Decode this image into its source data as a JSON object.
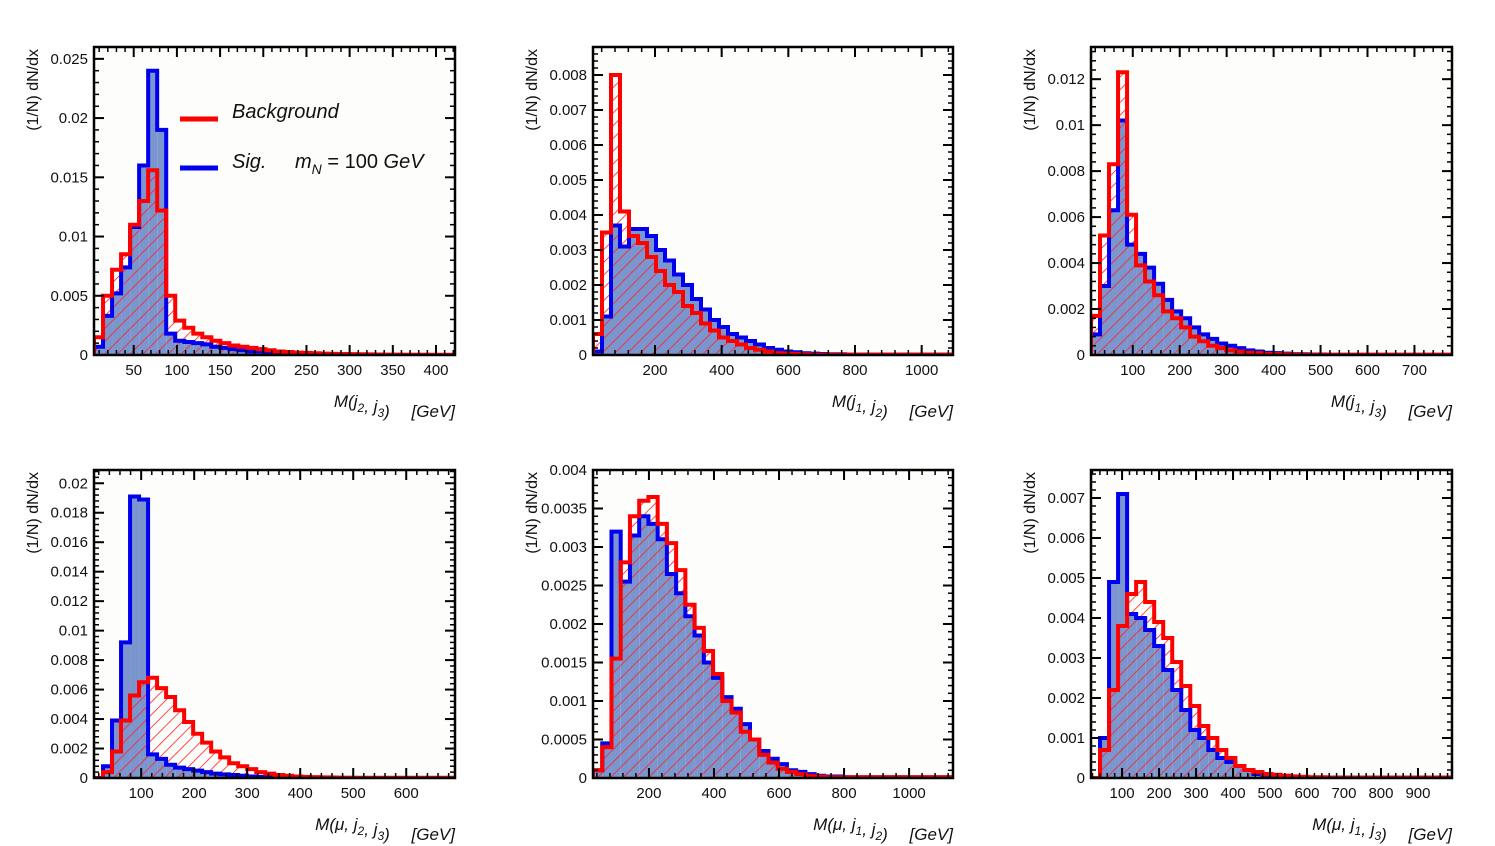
{
  "figure": {
    "ylabel": "(1/N) dN/dx",
    "legend": {
      "background_label": "Background",
      "signal_label": "Sig.",
      "signal_mass_label": "m_N = 100 GeV",
      "placement": "top-right of first panel"
    }
  },
  "colors": {
    "background_line": "#ff0000",
    "background_hatch": "#ff2020",
    "signal_line": "#0000ee",
    "signal_fill": "#7b96cf",
    "frame": "#000000",
    "panel_bg": "#fdfdfb"
  },
  "chart_data": [
    {
      "type": "bar",
      "title": "",
      "xlabel": "M(j2, j3) [GeV]",
      "xlabel_parts": {
        "var": "M(",
        "a": "j",
        "a_sub": "2",
        "sep": ", ",
        "b": "j",
        "b_sub": "3",
        "close": ")",
        "unit": "[GeV]"
      },
      "ylabel": "(1/N) dN/dx",
      "xlim": [
        4,
        422
      ],
      "ylim": [
        0,
        0.026
      ],
      "bin_start": 4,
      "bin_width": 10.45,
      "xticks": [
        50,
        100,
        150,
        200,
        250,
        300,
        350,
        400
      ],
      "xtick_labels": [
        "50",
        "100",
        "150",
        "200",
        "250",
        "300",
        "350",
        "400"
      ],
      "yticks": [
        0,
        0.005,
        0.01,
        0.015,
        0.02,
        0.025
      ],
      "ytick_labels": [
        "0",
        "0.005",
        "0.01",
        "0.015",
        "0.02",
        "0.025"
      ],
      "legend": true,
      "series": [
        {
          "name": "Sig. m_N = 100 GeV",
          "style": "filled",
          "values": [
            0.0007,
            0.0033,
            0.0052,
            0.0074,
            0.0108,
            0.016,
            0.024,
            0.019,
            0.0018,
            0.0012,
            0.0011,
            0.001,
            0.0009,
            0.0007,
            0.0006,
            0.0005,
            0.0004,
            0.0003,
            0.0003,
            0.0002,
            0.0002,
            0.00015,
            0.0001,
            0.0001,
            8e-05,
            6e-05,
            5e-05,
            4e-05,
            3e-05,
            3e-05,
            2e-05,
            2e-05,
            1e-05,
            1e-05,
            1e-05,
            1e-05,
            1e-05,
            1e-05,
            1e-05,
            1e-05
          ]
        },
        {
          "name": "Background",
          "style": "hatched",
          "values": [
            0.0015,
            0.005,
            0.0072,
            0.0085,
            0.011,
            0.013,
            0.0156,
            0.0122,
            0.005,
            0.0029,
            0.0023,
            0.0018,
            0.0015,
            0.0012,
            0.001,
            0.0008,
            0.0007,
            0.0006,
            0.0005,
            0.0004,
            0.0003,
            0.00025,
            0.0002,
            0.00018,
            0.00015,
            0.00012,
            0.0001,
            8e-05,
            7e-05,
            6e-05,
            5e-05,
            4e-05,
            3e-05,
            3e-05,
            2e-05,
            2e-05,
            2e-05,
            1e-05,
            1e-05,
            1e-05
          ]
        }
      ]
    },
    {
      "type": "bar",
      "title": "",
      "xlabel": "M(j1, j2) [GeV]",
      "xlabel_parts": {
        "var": "M(",
        "a": "j",
        "a_sub": "1",
        "sep": ", ",
        "b": "j",
        "b_sub": "2",
        "close": ")",
        "unit": "[GeV]"
      },
      "ylabel": "(1/N) dN/dx",
      "xlim": [
        14,
        1094
      ],
      "ylim": [
        0,
        0.0088
      ],
      "bin_start": 14,
      "bin_width": 27,
      "xticks": [
        200,
        400,
        600,
        800,
        1000
      ],
      "xtick_labels": [
        "200",
        "400",
        "600",
        "800",
        "1000"
      ],
      "yticks": [
        0,
        0.001,
        0.002,
        0.003,
        0.004,
        0.005,
        0.006,
        0.007,
        0.008
      ],
      "ytick_labels": [
        "0",
        "0.001",
        "0.002",
        "0.003",
        "0.004",
        "0.005",
        "0.006",
        "0.007",
        "0.008"
      ],
      "legend": false,
      "series": [
        {
          "name": "Sig. m_N = 100 GeV",
          "style": "filled",
          "values": [
            0.0001,
            0.0011,
            0.0037,
            0.0031,
            0.0036,
            0.0036,
            0.0034,
            0.003,
            0.0027,
            0.0023,
            0.002,
            0.0016,
            0.0013,
            0.001,
            0.0008,
            0.0006,
            0.0005,
            0.0004,
            0.0003,
            0.0002,
            0.00015,
            0.0001,
            8e-05,
            5e-05,
            4e-05,
            3e-05,
            2e-05,
            2e-05,
            1e-05,
            1e-05,
            1e-05,
            1e-05,
            1e-05,
            1e-05,
            1e-05,
            1e-05,
            1e-05,
            1e-05,
            1e-05,
            1e-05
          ]
        },
        {
          "name": "Background",
          "style": "hatched",
          "values": [
            0.0006,
            0.0035,
            0.008,
            0.0041,
            0.0034,
            0.0032,
            0.0028,
            0.0024,
            0.002,
            0.0018,
            0.0014,
            0.0012,
            0.0009,
            0.0007,
            0.0005,
            0.0004,
            0.0003,
            0.0002,
            0.00015,
            0.0001,
            5e-05,
            4e-05,
            3e-05,
            2e-05,
            1e-05,
            1e-05,
            1e-05,
            1e-05,
            1e-05,
            1e-05,
            1e-05,
            1e-05,
            1e-05,
            1e-05,
            1e-05,
            1e-05,
            1e-05,
            1e-05,
            1e-05,
            1e-05
          ]
        }
      ]
    },
    {
      "type": "bar",
      "title": "",
      "xlabel": "M(j1, j3) [GeV]",
      "xlabel_parts": {
        "var": "M(",
        "a": "j",
        "a_sub": "1",
        "sep": ", ",
        "b": "j",
        "b_sub": "3",
        "close": ")",
        "unit": "[GeV]"
      },
      "ylabel": "(1/N) dN/dx",
      "xlim": [
        11,
        780
      ],
      "ylim": [
        0,
        0.0134
      ],
      "bin_start": 11,
      "bin_width": 19.2,
      "xticks": [
        100,
        200,
        300,
        400,
        500,
        600,
        700
      ],
      "xtick_labels": [
        "100",
        "200",
        "300",
        "400",
        "500",
        "600",
        "700"
      ],
      "yticks": [
        0,
        0.002,
        0.004,
        0.006,
        0.008,
        0.01,
        0.012
      ],
      "ytick_labels": [
        "0",
        "0.002",
        "0.004",
        "0.006",
        "0.008",
        "0.01",
        "0.012"
      ],
      "legend": false,
      "series": [
        {
          "name": "Sig. m_N = 100 GeV",
          "style": "filled",
          "values": [
            0.0009,
            0.003,
            0.0063,
            0.0102,
            0.0048,
            0.0044,
            0.0038,
            0.0031,
            0.0024,
            0.0019,
            0.0016,
            0.0012,
            0.0009,
            0.0007,
            0.0005,
            0.0004,
            0.0003,
            0.0002,
            0.00015,
            0.0001,
            8e-05,
            6e-05,
            4e-05,
            3e-05,
            2e-05,
            2e-05,
            1e-05,
            1e-05,
            1e-05,
            1e-05,
            1e-05,
            1e-05,
            1e-05,
            1e-05,
            1e-05,
            1e-05,
            1e-05,
            1e-05,
            1e-05,
            1e-05
          ]
        },
        {
          "name": "Background",
          "style": "hatched",
          "values": [
            0.0017,
            0.0052,
            0.0083,
            0.0123,
            0.0061,
            0.0039,
            0.0032,
            0.0026,
            0.0019,
            0.0016,
            0.0012,
            0.0008,
            0.0006,
            0.0004,
            0.0003,
            0.0002,
            0.00015,
            0.0001,
            8e-05,
            5e-05,
            4e-05,
            3e-05,
            2e-05,
            1e-05,
            1e-05,
            1e-05,
            1e-05,
            1e-05,
            1e-05,
            1e-05,
            1e-05,
            1e-05,
            1e-05,
            1e-05,
            1e-05,
            1e-05,
            1e-05,
            1e-05,
            1e-05,
            1e-05
          ]
        }
      ]
    },
    {
      "type": "bar",
      "title": "",
      "xlabel": "M(μ, j2, j3) [GeV]",
      "xlabel_parts": {
        "var": "M(μ, ",
        "a": "j",
        "a_sub": "2",
        "sep": ", ",
        "b": "j",
        "b_sub": "3",
        "close": ")",
        "unit": "[GeV]"
      },
      "ylabel": "(1/N) dN/dx",
      "xlim": [
        11,
        692
      ],
      "ylim": [
        0,
        0.0209
      ],
      "bin_start": 11,
      "bin_width": 17,
      "xticks": [
        100,
        200,
        300,
        400,
        500,
        600
      ],
      "xtick_labels": [
        "100",
        "200",
        "300",
        "400",
        "500",
        "600"
      ],
      "yticks": [
        0,
        0.002,
        0.004,
        0.006,
        0.008,
        0.01,
        0.012,
        0.014,
        0.016,
        0.018,
        0.02
      ],
      "ytick_labels": [
        "0",
        "0.002",
        "0.004",
        "0.006",
        "0.008",
        "0.01",
        "0.012",
        "0.014",
        "0.016",
        "0.018",
        "0.02"
      ],
      "legend": false,
      "series": [
        {
          "name": "Sig. m_N = 100 GeV",
          "style": "filled",
          "values": [
            0,
            0.0008,
            0.0039,
            0.0092,
            0.0191,
            0.0189,
            0.0016,
            0.0013,
            0.0009,
            0.0007,
            0.0006,
            0.0005,
            0.0004,
            0.0003,
            0.00025,
            0.0002,
            0.00015,
            0.0001,
            8e-05,
            6e-05,
            5e-05,
            3e-05,
            2e-05,
            2e-05,
            1e-05,
            1e-05,
            1e-05,
            1e-05,
            1e-05,
            1e-05,
            1e-05,
            1e-05,
            1e-05,
            1e-05,
            1e-05,
            1e-05,
            1e-05,
            1e-05,
            1e-05,
            1e-05
          ]
        },
        {
          "name": "Background",
          "style": "hatched",
          "values": [
            0,
            0.0004,
            0.0018,
            0.0039,
            0.0056,
            0.0065,
            0.0068,
            0.0061,
            0.0055,
            0.0046,
            0.0038,
            0.003,
            0.0024,
            0.0018,
            0.0014,
            0.001,
            0.0008,
            0.0006,
            0.0004,
            0.0003,
            0.0002,
            0.00015,
            0.0001,
            8e-05,
            6e-05,
            4e-05,
            3e-05,
            2e-05,
            2e-05,
            1e-05,
            1e-05,
            1e-05,
            1e-05,
            1e-05,
            1e-05,
            1e-05,
            1e-05,
            1e-05,
            1e-05,
            1e-05
          ]
        }
      ]
    },
    {
      "type": "bar",
      "title": "",
      "xlabel": "M(μ, j1, j2) [GeV]",
      "xlabel_parts": {
        "var": "M(μ, ",
        "a": "j",
        "a_sub": "1",
        "sep": ", ",
        "b": "j",
        "b_sub": "2",
        "close": ")",
        "unit": "[GeV]"
      },
      "ylabel": "(1/N) dN/dx",
      "xlim": [
        28,
        1135
      ],
      "ylim": [
        0,
        0.004
      ],
      "bin_start": 28,
      "bin_width": 28.4,
      "xticks": [
        200,
        400,
        600,
        800,
        1000
      ],
      "xtick_labels": [
        "200",
        "400",
        "600",
        "800",
        "1000"
      ],
      "yticks": [
        0,
        0.0005,
        0.001,
        0.0015,
        0.002,
        0.0025,
        0.003,
        0.0035,
        0.004
      ],
      "ytick_labels": [
        "0",
        "0.0005",
        "0.001",
        "0.0015",
        "0.002",
        "0.0025",
        "0.003",
        "0.0035",
        "0.004"
      ],
      "legend": false,
      "series": [
        {
          "name": "Sig. m_N = 100 GeV",
          "style": "filled",
          "values": [
            0.0001,
            0.00045,
            0.0032,
            0.00255,
            0.00315,
            0.0034,
            0.0033,
            0.0031,
            0.00265,
            0.0024,
            0.0021,
            0.00185,
            0.0015,
            0.0013,
            0.00105,
            0.0009,
            0.0007,
            0.0005,
            0.00035,
            0.00025,
            0.00018,
            0.0001,
            8e-05,
            5e-05,
            3e-05,
            2e-05,
            2e-05,
            1e-05,
            1e-05,
            1e-05,
            1e-05,
            1e-05,
            1e-05,
            1e-05,
            1e-05,
            1e-05,
            1e-05,
            1e-05,
            1e-05
          ]
        },
        {
          "name": "Background",
          "style": "hatched",
          "values": [
            0.0001,
            0.0004,
            0.00155,
            0.0028,
            0.0034,
            0.0036,
            0.00365,
            0.0033,
            0.00305,
            0.0027,
            0.00225,
            0.00195,
            0.00165,
            0.00135,
            0.001,
            0.00085,
            0.0006,
            0.0005,
            0.0003,
            0.0002,
            0.00012,
            8e-05,
            5e-05,
            3e-05,
            2e-05,
            1e-05,
            1e-05,
            1e-05,
            1e-05,
            1e-05,
            1e-05,
            1e-05,
            1e-05,
            1e-05,
            1e-05,
            1e-05,
            1e-05,
            1e-05,
            1e-05
          ]
        }
      ]
    },
    {
      "type": "bar",
      "title": "",
      "xlabel": "M(μ, j1, j3) [GeV]",
      "xlabel_parts": {
        "var": "M(μ, ",
        "a": "j",
        "a_sub": "1",
        "sep": ", ",
        "b": "j",
        "b_sub": "3",
        "close": ")",
        "unit": "[GeV]"
      },
      "ylabel": "(1/N) dN/dx",
      "xlim": [
        16,
        992
      ],
      "ylim": [
        0,
        0.0077
      ],
      "bin_start": 16,
      "bin_width": 24.4,
      "xticks": [
        100,
        200,
        300,
        400,
        500,
        600,
        700,
        800,
        900
      ],
      "xtick_labels": [
        "100",
        "200",
        "300",
        "400",
        "500",
        "600",
        "700",
        "800",
        "900"
      ],
      "yticks": [
        0,
        0.001,
        0.002,
        0.003,
        0.004,
        0.005,
        0.006,
        0.007
      ],
      "ytick_labels": [
        "0",
        "0.001",
        "0.002",
        "0.003",
        "0.004",
        "0.005",
        "0.006",
        "0.007"
      ],
      "legend": false,
      "series": [
        {
          "name": "Sig. m_N = 100 GeV",
          "style": "filled",
          "values": [
            0,
            0.001,
            0.0049,
            0.0071,
            0.0041,
            0.004,
            0.0037,
            0.0033,
            0.0027,
            0.0022,
            0.0017,
            0.0012,
            0.001,
            0.0007,
            0.0005,
            0.0004,
            0.0003,
            0.0002,
            0.0001,
            8e-05,
            6e-05,
            4e-05,
            3e-05,
            2e-05,
            1e-05,
            1e-05,
            1e-05,
            1e-05,
            1e-05,
            1e-05,
            1e-05,
            1e-05,
            1e-05,
            1e-05,
            1e-05,
            1e-05,
            1e-05,
            1e-05,
            1e-05,
            1e-05
          ]
        },
        {
          "name": "Background",
          "style": "hatched",
          "values": [
            0,
            0.0007,
            0.0022,
            0.0038,
            0.0046,
            0.0049,
            0.0044,
            0.0039,
            0.0035,
            0.0029,
            0.0023,
            0.0018,
            0.0013,
            0.001,
            0.0007,
            0.0005,
            0.0003,
            0.0002,
            0.00015,
            0.0001,
            8e-05,
            6e-05,
            4e-05,
            3e-05,
            2e-05,
            2e-05,
            1e-05,
            1e-05,
            1e-05,
            1e-05,
            1e-05,
            1e-05,
            1e-05,
            1e-05,
            1e-05,
            1e-05,
            1e-05,
            1e-05,
            1e-05,
            1e-05
          ]
        }
      ]
    }
  ]
}
